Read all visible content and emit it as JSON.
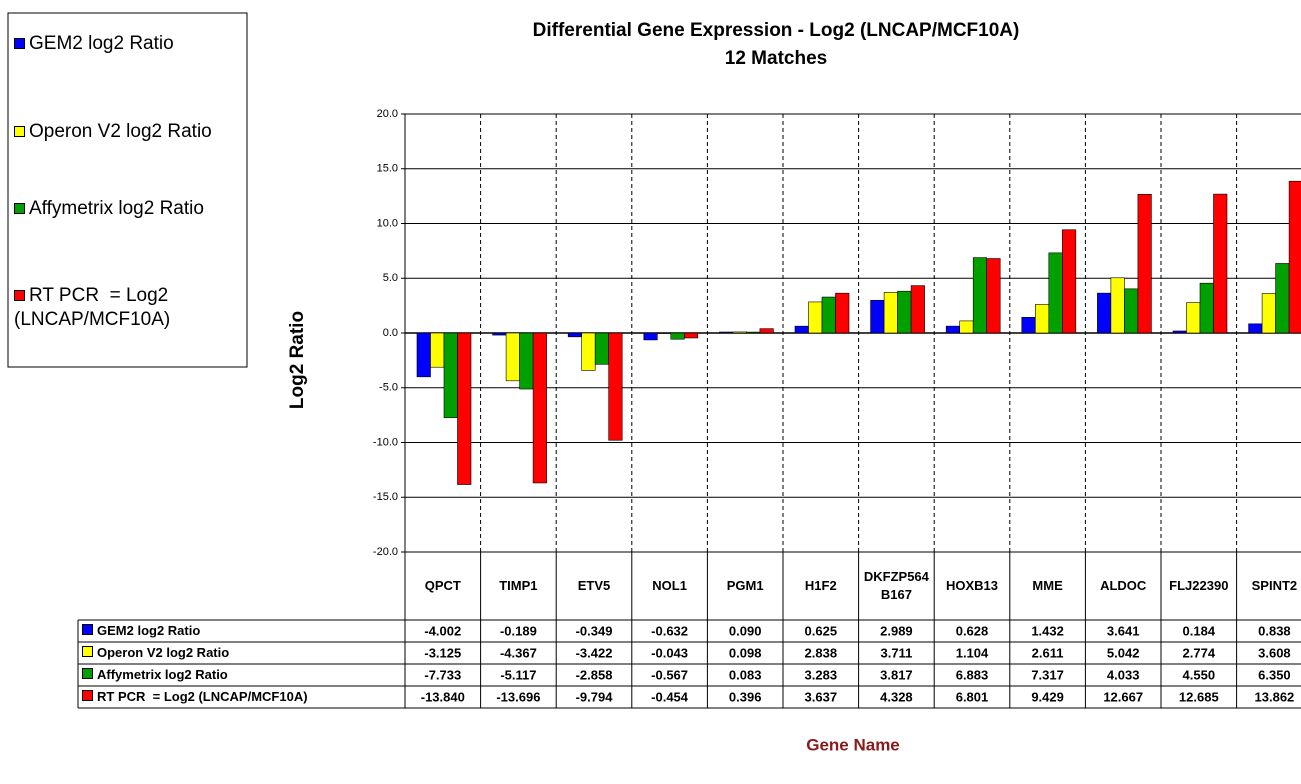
{
  "chart_data": {
    "type": "bar",
    "title": "Differential Gene Expression - Log2 (LNCAP/MCF10A)",
    "subtitle": "12 Matches",
    "x_label": "Gene Name",
    "y_label": "Log2 Ratio",
    "categories": [
      "QPCT",
      "TIMP1",
      "ETV5",
      "NOL1",
      "PGM1",
      "H1F2",
      "DKFZP564B167",
      "HOXB13",
      "MME",
      "ALDOC",
      "FLJ22390",
      "SPINT2"
    ],
    "series": [
      {
        "name": "GEM2 log2 Ratio",
        "color": "#0000ff",
        "values": [
          -4.002,
          -0.189,
          -0.349,
          -0.632,
          0.09,
          0.625,
          2.989,
          0.628,
          1.432,
          3.641,
          0.184,
          0.838
        ],
        "value_labels": [
          "-4.002",
          "-0.189",
          "-0.349",
          "-0.632",
          "0.090",
          "0.625",
          "2.989",
          "0.628",
          "1.432",
          "3.641",
          "0.184",
          "0.838"
        ]
      },
      {
        "name": "Operon V2 log2 Ratio",
        "color": "#ffff00",
        "values": [
          -3.125,
          -4.367,
          -3.422,
          -0.043,
          0.098,
          2.838,
          3.711,
          1.104,
          2.611,
          5.042,
          2.774,
          3.608
        ],
        "value_labels": [
          "-3.125",
          "-4.367",
          "-3.422",
          "-0.043",
          "0.098",
          "2.838",
          "3.711",
          "1.104",
          "2.611",
          "5.042",
          "2.774",
          "3.608"
        ]
      },
      {
        "name": "Affymetrix log2 Ratio",
        "color": "#00a000",
        "values": [
          -7.733,
          -5.117,
          -2.858,
          -0.567,
          0.083,
          3.283,
          3.817,
          6.883,
          7.317,
          4.033,
          4.55,
          6.35
        ],
        "value_labels": [
          "-7.733",
          "-5.117",
          "-2.858",
          "-0.567",
          "0.083",
          "3.283",
          "3.817",
          "6.883",
          "7.317",
          "4.033",
          "4.550",
          "6.350"
        ]
      },
      {
        "name": "RT PCR  = Log2 (LNCAP/MCF10A)",
        "color": "#ff0000",
        "values": [
          -13.84,
          -13.696,
          -9.794,
          -0.454,
          0.396,
          3.637,
          4.328,
          6.801,
          9.429,
          12.667,
          12.685,
          13.862
        ],
        "value_labels": [
          "-13.840",
          "-13.696",
          "-9.794",
          "-0.454",
          "0.396",
          "3.637",
          "4.328",
          "6.801",
          "9.429",
          "12.667",
          "12.685",
          "13.862"
        ]
      }
    ],
    "ylim": [
      -20,
      20
    ],
    "yticks": [
      {
        "value": -20,
        "label": "-20.0"
      },
      {
        "value": -15,
        "label": "-15.0"
      },
      {
        "value": -10,
        "label": "-10.0"
      },
      {
        "value": -5,
        "label": "-5.0"
      },
      {
        "value": 0,
        "label": "0.0"
      },
      {
        "value": 5,
        "label": "5.0"
      },
      {
        "value": 10,
        "label": "10.0"
      },
      {
        "value": 15,
        "label": "15.0"
      },
      {
        "value": 20,
        "label": "20.0"
      }
    ],
    "grid": true,
    "legend": "left"
  }
}
